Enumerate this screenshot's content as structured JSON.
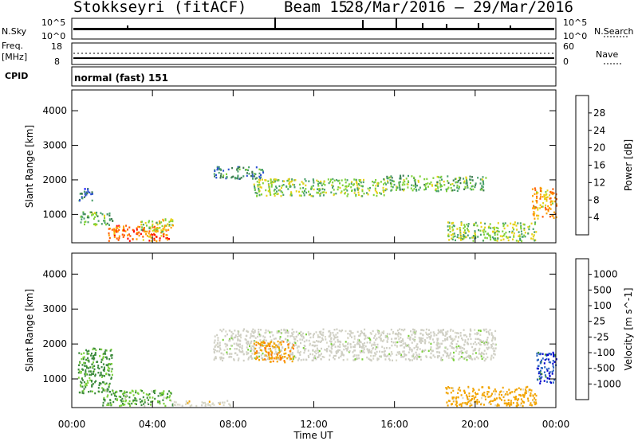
{
  "header": {
    "station": "Stokkseyri (fitACF)",
    "beam": "Beam 15",
    "dates": "28/Mar/2016 – 29/Mar/2016"
  },
  "nsky": {
    "label": "N.Sky",
    "tick_top": "10^5",
    "tick_bottom": "10^0",
    "right_label": "N.Search",
    "right_top": "10^5",
    "right_bottom": "10^0"
  },
  "freq": {
    "label_1": "Freq.",
    "label_2": "[MHz]",
    "tick_top": "18",
    "tick_bottom": "8",
    "right_label": "Nave",
    "right_top": "60",
    "right_bottom": "0"
  },
  "cpid": {
    "label": "CPID",
    "value": "normal (fast) 151"
  },
  "colors": {
    "power_scale": [
      "#0000ff",
      "#2b4fd0",
      "#3c7a4f",
      "#4aa06a",
      "#7fd13a",
      "#e6d21a",
      "#ff9f00",
      "#ff5a00",
      "#ff0000"
    ],
    "velocity_scale": [
      "#ff0000",
      "#ff7a00",
      "#f2a400",
      "#d9d9c8",
      "#cfcfc4",
      "#7ad03a",
      "#3c8a3c",
      "#2b64c4",
      "#0000cc"
    ]
  },
  "chart_data": [
    {
      "type": "heatmap",
      "title": "",
      "xlabel": "Time UT",
      "ylabel": "Slant Range [km]",
      "xlim": [
        "00:00",
        "24:00"
      ],
      "ylim": [
        180,
        4600
      ],
      "xticks": [
        "00:00",
        "04:00",
        "08:00",
        "12:00",
        "16:00",
        "20:00",
        "00:00"
      ],
      "yticks": [
        1000,
        2000,
        3000,
        4000
      ],
      "colorbar": {
        "label": "Power [dB]",
        "ticks": [
          4,
          8,
          12,
          16,
          20,
          24,
          28
        ],
        "range": [
          0,
          32
        ]
      },
      "regions": [
        {
          "t0": 0.3,
          "t1": 1.0,
          "r0": 1400,
          "r1": 1800,
          "value": 8
        },
        {
          "t0": 0.4,
          "t1": 2.0,
          "r0": 700,
          "r1": 1100,
          "value": 14
        },
        {
          "t0": 1.8,
          "t1": 4.8,
          "r0": 250,
          "r1": 700,
          "value": 26
        },
        {
          "t0": 3.4,
          "t1": 5.0,
          "r0": 500,
          "r1": 900,
          "value": 18
        },
        {
          "t0": 7.0,
          "t1": 9.5,
          "r0": 2050,
          "r1": 2400,
          "value": 10
        },
        {
          "t0": 9.0,
          "t1": 15.5,
          "r0": 1550,
          "r1": 2050,
          "value": 16
        },
        {
          "t0": 15.5,
          "t1": 20.5,
          "r0": 1700,
          "r1": 2150,
          "value": 14
        },
        {
          "t0": 18.5,
          "t1": 23.0,
          "r0": 250,
          "r1": 800,
          "value": 16
        },
        {
          "t0": 22.8,
          "t1": 24.0,
          "r0": 900,
          "r1": 1800,
          "value": 22
        }
      ]
    },
    {
      "type": "heatmap",
      "title": "",
      "xlabel": "Time UT",
      "ylabel": "Slant Range [km]",
      "xlim": [
        "00:00",
        "24:00"
      ],
      "ylim": [
        180,
        4600
      ],
      "xticks": [
        "00:00",
        "04:00",
        "08:00",
        "12:00",
        "16:00",
        "20:00",
        "00:00"
      ],
      "yticks": [
        1000,
        2000,
        3000,
        4000
      ],
      "colorbar": {
        "label": "Velocity [m s^-1]",
        "ticks": [
          1000,
          500,
          100,
          25,
          -25,
          -100,
          -500,
          -1000
        ]
      },
      "regions": [
        {
          "t0": 0.3,
          "t1": 2.0,
          "r0": 600,
          "r1": 1900,
          "value": 150
        },
        {
          "t0": 1.5,
          "t1": 5.0,
          "r0": 250,
          "r1": 700,
          "value": 100
        },
        {
          "t0": 5.0,
          "t1": 8.0,
          "r0": 250,
          "r1": 400,
          "value": -50
        },
        {
          "t0": 7.0,
          "t1": 21.0,
          "r0": 1550,
          "r1": 2450,
          "value": 0
        },
        {
          "t0": 9.0,
          "t1": 11.0,
          "r0": 1500,
          "r1": 2100,
          "value": -400
        },
        {
          "t0": 18.5,
          "t1": 23.0,
          "r0": 250,
          "r1": 800,
          "value": -200
        },
        {
          "t0": 23.0,
          "t1": 24.0,
          "r0": 900,
          "r1": 1800,
          "value": 800
        }
      ]
    }
  ]
}
